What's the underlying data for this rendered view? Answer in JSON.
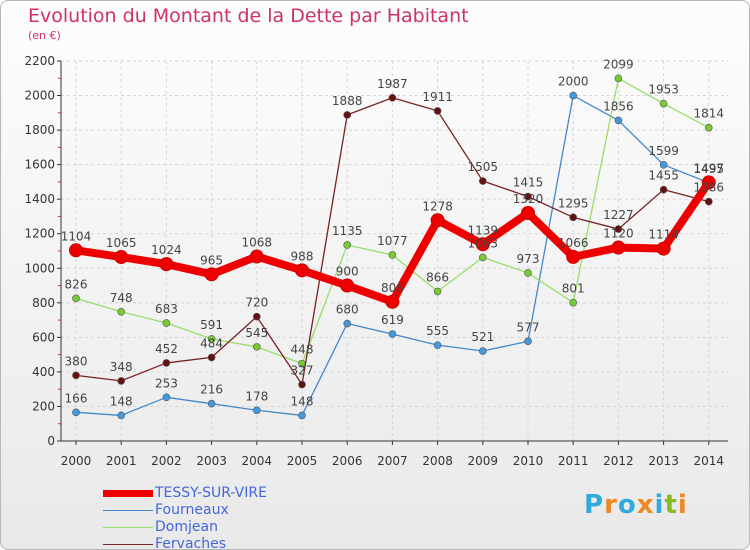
{
  "title": "Evolution du Montant de la Dette par Habitant",
  "subtitle": "(en €)",
  "logo": {
    "text": "Proxiti",
    "letters": [
      "P",
      "r",
      "o",
      "x",
      "i",
      "t",
      "i"
    ],
    "colors": [
      "#33aadd",
      "#ee8822",
      "#33aadd",
      "#ee8822",
      "#33aadd",
      "#88bb22",
      "#ee8822"
    ]
  },
  "chart_data": {
    "type": "line",
    "x": [
      "2000",
      "2001",
      "2002",
      "2003",
      "2004",
      "2005",
      "2006",
      "2007",
      "2008",
      "2009",
      "2010",
      "2011",
      "2012",
      "2013",
      "2014"
    ],
    "ylim": [
      0,
      2200
    ],
    "yticks": [
      0,
      200,
      400,
      600,
      800,
      1000,
      1200,
      1400,
      1600,
      1800,
      2000,
      2200
    ],
    "grid": true,
    "legend": "bottom-left",
    "series": [
      {
        "name": "TESSY-SUR-VIRE",
        "color": "#ee0000",
        "marker": "#ee0000",
        "emphasis": true,
        "values": [
          1104,
          1065,
          1024,
          965,
          1068,
          988,
          900,
          806,
          1278,
          1139,
          1320,
          1066,
          1120,
          1114,
          1497
        ],
        "labels": [
          "1104",
          "1065",
          "1024",
          "965",
          "1068",
          "988",
          "900",
          "806",
          "1278",
          "1139",
          "1320",
          "1066",
          "1120",
          "1114",
          "1497"
        ]
      },
      {
        "name": "Fourneaux",
        "color": "#4488cc",
        "marker": "#4499dd",
        "emphasis": false,
        "values": [
          166,
          148,
          253,
          216,
          178,
          148,
          680,
          619,
          555,
          521,
          577,
          2000,
          1856,
          1599,
          1495
        ],
        "labels": [
          "166",
          "148",
          "253",
          "216",
          "178",
          "148",
          "680",
          "619",
          "555",
          "521",
          "577",
          "2000",
          "1856",
          "1599",
          "1495"
        ]
      },
      {
        "name": "Domjean",
        "color": "#99dd66",
        "marker": "#77cc33",
        "emphasis": false,
        "values": [
          826,
          748,
          683,
          591,
          545,
          448,
          1135,
          1077,
          866,
          1063,
          973,
          801,
          2099,
          1953,
          1814
        ],
        "labels": [
          "826",
          "748",
          "683",
          "591",
          "545",
          "448",
          "1135",
          "1077",
          "866",
          "1063",
          "973",
          "801",
          "2099",
          "1953",
          "1814"
        ]
      },
      {
        "name": "Fervaches",
        "color": "#772222",
        "marker": "#661111",
        "emphasis": false,
        "values": [
          380,
          348,
          452,
          484,
          720,
          327,
          1888,
          1987,
          1911,
          1505,
          1415,
          1295,
          1227,
          1455,
          1386
        ],
        "labels": [
          "380",
          "348",
          "452",
          "484",
          "720",
          "327",
          "1888",
          "1987",
          "1911",
          "1505",
          "1415",
          "1295",
          "1227",
          "1455",
          "1386"
        ]
      }
    ]
  }
}
